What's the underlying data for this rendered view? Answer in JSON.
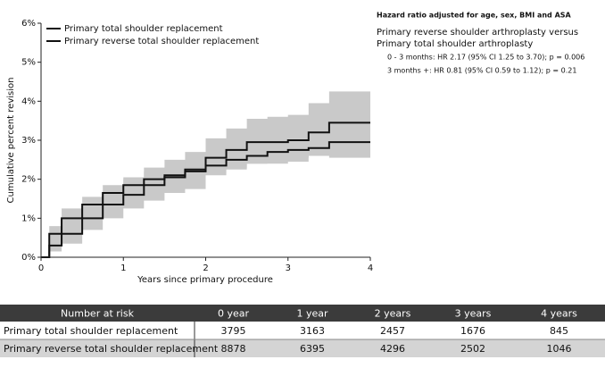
{
  "chart_data": {
    "type": "step",
    "x_label": "Years since primary procedure",
    "y_label": "Cumulative percent revision",
    "x": [
      0,
      0.1,
      0.25,
      0.5,
      0.75,
      1,
      1.25,
      1.5,
      1.75,
      2,
      2.25,
      2.5,
      2.75,
      3,
      3.25,
      3.5,
      3.75,
      4
    ],
    "xlim": [
      0,
      4
    ],
    "xticks": [
      0,
      1,
      2,
      3,
      4
    ],
    "ylim": [
      0,
      6
    ],
    "yticks": [
      {
        "value": 0,
        "label": "0%"
      },
      {
        "value": 1,
        "label": "1%"
      },
      {
        "value": 2,
        "label": "2%"
      },
      {
        "value": 3,
        "label": "3%"
      },
      {
        "value": 4,
        "label": "4%"
      },
      {
        "value": 5,
        "label": "5%"
      },
      {
        "value": 6,
        "label": "6%"
      }
    ],
    "band_color": "#c9c9c9",
    "series": [
      {
        "name": "Primary total shoulder replacement",
        "color": "#111111",
        "values": [
          0,
          0.3,
          0.6,
          1.0,
          1.35,
          1.6,
          1.85,
          2.05,
          2.2,
          2.55,
          2.75,
          2.95,
          2.95,
          3.0,
          3.2,
          3.45,
          3.45,
          3.45
        ],
        "ci_lower": [
          0,
          0.15,
          0.35,
          0.7,
          1.0,
          1.25,
          1.45,
          1.65,
          1.75,
          2.1,
          2.25,
          2.4,
          2.4,
          2.45,
          2.6,
          2.75,
          2.75,
          2.75
        ],
        "ci_upper": [
          0,
          0.5,
          0.9,
          1.35,
          1.7,
          2.0,
          2.3,
          2.5,
          2.7,
          3.05,
          3.3,
          3.55,
          3.6,
          3.65,
          3.95,
          4.25,
          4.25,
          4.25
        ]
      },
      {
        "name": "Primary reverse total shoulder replacement",
        "color": "#111111",
        "values": [
          0,
          0.6,
          1.0,
          1.35,
          1.65,
          1.85,
          2.0,
          2.1,
          2.25,
          2.35,
          2.5,
          2.6,
          2.7,
          2.75,
          2.8,
          2.95,
          2.95,
          2.95
        ],
        "ci_lower": [
          0,
          0.45,
          0.8,
          1.15,
          1.45,
          1.65,
          1.8,
          1.9,
          2.05,
          2.15,
          2.3,
          2.4,
          2.5,
          2.55,
          2.6,
          2.55,
          2.55,
          2.55
        ],
        "ci_upper": [
          0,
          0.8,
          1.25,
          1.55,
          1.85,
          2.05,
          2.2,
          2.3,
          2.45,
          2.55,
          2.7,
          2.8,
          2.9,
          2.95,
          3.0,
          3.2,
          3.2,
          3.2
        ]
      }
    ],
    "annotations": [
      "Hazard ratio adjusted for age, sex, BMI and ASA",
      "Primary reverse shoulder arthroplasty versus",
      "Primary total shoulder arthroplasty",
      "0 - 3 months: HR 2.17 (95% CI 1.25 to 3.70); p = 0.006",
      "3 months +: HR 0.81 (95% CI 0.59 to 1.12); p = 0.21"
    ]
  },
  "table": {
    "header": [
      "Number at risk",
      "0 year",
      "1 year",
      "2 years",
      "3 years",
      "4 years"
    ],
    "rows": [
      [
        "Primary total shoulder replacement",
        3795,
        3163,
        2457,
        1676,
        845
      ],
      [
        "Primary reverse total shoulder replacement",
        8878,
        6395,
        4296,
        2502,
        1046
      ]
    ]
  }
}
